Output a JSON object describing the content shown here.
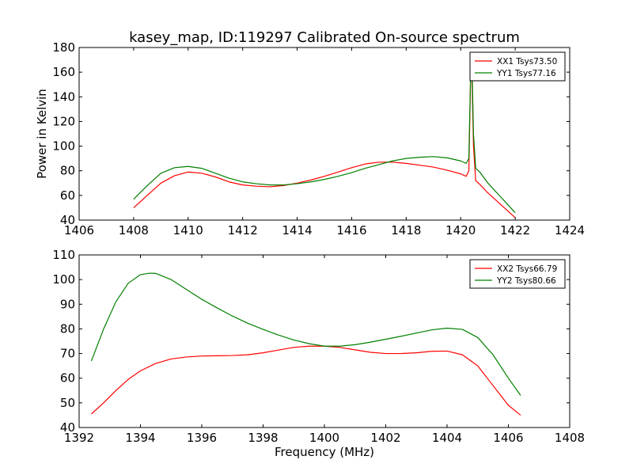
{
  "figure": {
    "title": "kasey_map, ID:119297 Calibrated On-source spectrum"
  },
  "colors": {
    "XX": "#ff0000",
    "YY": "#008000"
  },
  "chart_data": [
    {
      "type": "line",
      "title": "kasey_map, ID:119297 Calibrated On-source spectrum",
      "xlabel": "",
      "ylabel": "Power in Kelvin",
      "xlim": [
        1406,
        1424
      ],
      "ylim": [
        40,
        180
      ],
      "xticks": [
        1406,
        1408,
        1410,
        1412,
        1414,
        1416,
        1418,
        1420,
        1422,
        1424
      ],
      "yticks": [
        40,
        60,
        80,
        100,
        120,
        140,
        160,
        180
      ],
      "legend_position": "top-right",
      "grid": false,
      "series": [
        {
          "name": "XX1 Tsys73.50",
          "color": "#ff0000",
          "x": [
            1408.0,
            1408.5,
            1409.0,
            1409.5,
            1410.0,
            1410.5,
            1411.0,
            1411.5,
            1412.0,
            1412.5,
            1413.0,
            1413.5,
            1414.0,
            1414.5,
            1415.0,
            1415.5,
            1416.0,
            1416.5,
            1417.0,
            1417.5,
            1418.0,
            1418.5,
            1419.0,
            1419.5,
            1420.0,
            1420.2,
            1420.3,
            1420.38,
            1420.42,
            1420.47,
            1420.55,
            1420.7,
            1421.0,
            1421.5,
            1422.0
          ],
          "y": [
            50,
            60,
            70,
            76,
            79,
            78,
            75,
            71,
            68.5,
            67.5,
            67,
            68,
            70,
            72.5,
            75.5,
            79,
            82.5,
            85.5,
            87,
            87,
            86,
            84.5,
            83,
            80.5,
            77.5,
            75.5,
            80,
            176,
            150,
            100,
            72,
            69,
            62,
            52,
            42
          ]
        },
        {
          "name": "YY1 Tsys77.16",
          "color": "#008000",
          "x": [
            1408.0,
            1408.5,
            1409.0,
            1409.5,
            1410.0,
            1410.5,
            1411.0,
            1411.5,
            1412.0,
            1412.5,
            1413.0,
            1413.5,
            1414.0,
            1414.5,
            1415.0,
            1415.5,
            1416.0,
            1416.5,
            1417.0,
            1417.5,
            1418.0,
            1418.5,
            1419.0,
            1419.5,
            1420.0,
            1420.2,
            1420.3,
            1420.38,
            1420.42,
            1420.47,
            1420.55,
            1420.7,
            1421.0,
            1421.5,
            1422.0
          ],
          "y": [
            57,
            68,
            78,
            82.5,
            83.5,
            82,
            78,
            74,
            71,
            69.5,
            68.5,
            68.5,
            69.5,
            71,
            73,
            75.5,
            78.5,
            82,
            85,
            88,
            90,
            91,
            91.5,
            90.5,
            88,
            86,
            90,
            176,
            160,
            110,
            82,
            79,
            70,
            58,
            46
          ]
        }
      ]
    },
    {
      "type": "line",
      "title": "",
      "xlabel": "Frequency (MHz)",
      "ylabel": "",
      "xlim": [
        1392,
        1408
      ],
      "ylim": [
        40,
        110
      ],
      "xticks": [
        1392,
        1394,
        1396,
        1398,
        1400,
        1402,
        1404,
        1406,
        1408
      ],
      "yticks": [
        40,
        50,
        60,
        70,
        80,
        90,
        100,
        110
      ],
      "legend_position": "top-right",
      "grid": false,
      "series": [
        {
          "name": "XX2 Tsys66.79",
          "color": "#ff0000",
          "x": [
            1392.4,
            1392.8,
            1393.2,
            1393.6,
            1394.0,
            1394.5,
            1395.0,
            1395.5,
            1396.0,
            1396.5,
            1397.0,
            1397.5,
            1398.0,
            1398.5,
            1399.0,
            1399.5,
            1400.0,
            1400.5,
            1401.0,
            1401.5,
            1402.0,
            1402.5,
            1403.0,
            1403.5,
            1404.0,
            1404.5,
            1405.0,
            1405.5,
            1406.0,
            1406.4
          ],
          "y": [
            45.5,
            50,
            55,
            59.5,
            63,
            66,
            67.8,
            68.6,
            69,
            69.1,
            69.2,
            69.5,
            70.3,
            71.4,
            72.5,
            73,
            73,
            72.5,
            71.5,
            70.5,
            70,
            70,
            70.3,
            70.9,
            71,
            69.5,
            65,
            57,
            49,
            45
          ]
        },
        {
          "name": "YY2 Tsys80.66",
          "color": "#008000",
          "x": [
            1392.4,
            1392.8,
            1393.2,
            1393.6,
            1394.0,
            1394.3,
            1394.5,
            1395.0,
            1395.5,
            1396.0,
            1396.5,
            1397.0,
            1397.5,
            1398.0,
            1398.5,
            1399.0,
            1399.5,
            1400.0,
            1400.5,
            1401.0,
            1401.5,
            1402.0,
            1402.5,
            1403.0,
            1403.5,
            1404.0,
            1404.5,
            1405.0,
            1405.5,
            1406.0,
            1406.4
          ],
          "y": [
            67,
            80,
            91,
            98.5,
            102,
            102.6,
            102.5,
            100,
            96,
            92,
            88.5,
            85.2,
            82.3,
            79.8,
            77.5,
            75.5,
            74,
            73,
            73,
            73.6,
            74.6,
            75.8,
            77,
            78.3,
            79.6,
            80.3,
            79.8,
            76.5,
            69.5,
            60,
            53
          ]
        }
      ]
    }
  ]
}
